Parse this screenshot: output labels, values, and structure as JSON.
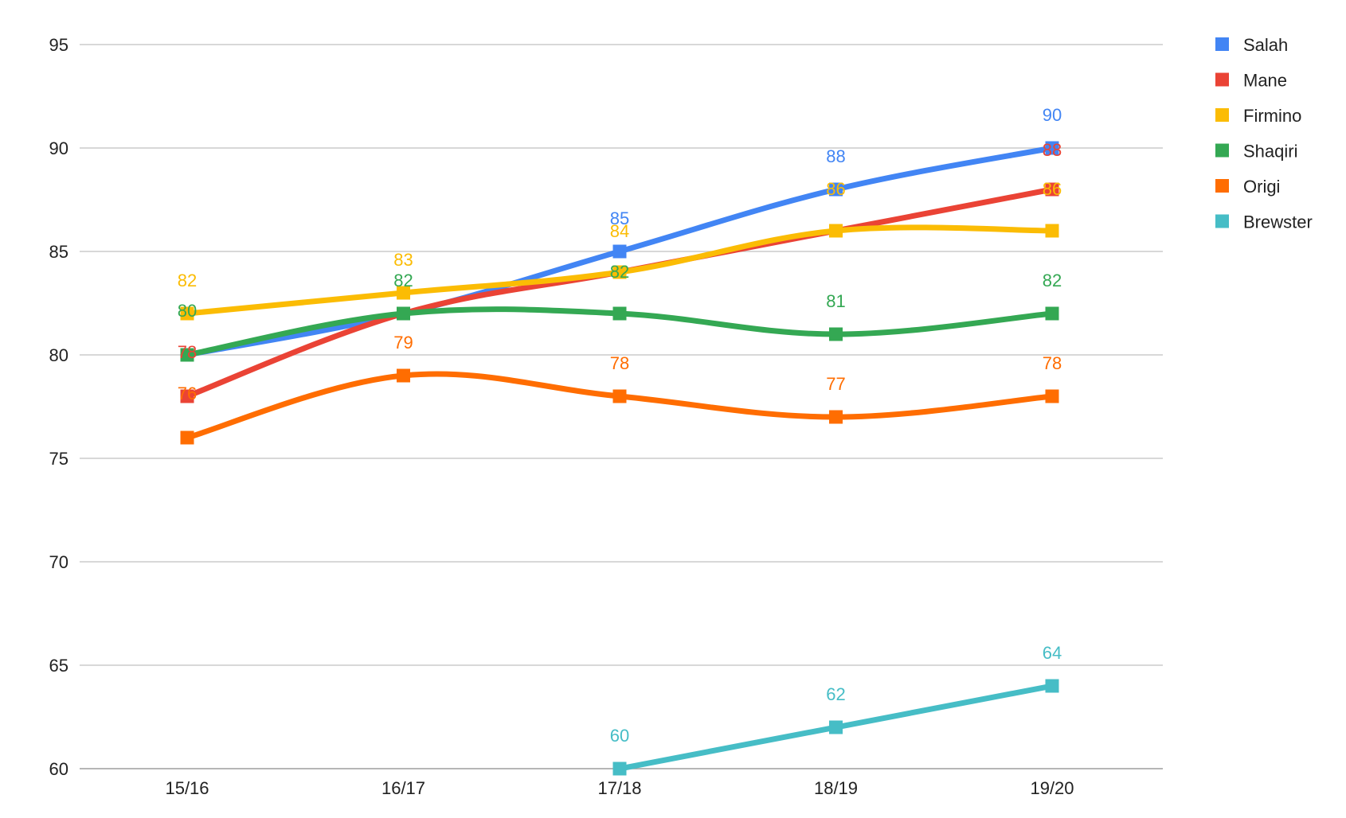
{
  "chart_data": {
    "type": "line",
    "title": "",
    "xlabel": "",
    "ylabel": "",
    "categories": [
      "15/16",
      "16/17",
      "17/18",
      "18/19",
      "19/20"
    ],
    "ylim": [
      60,
      95
    ],
    "yticks": [
      "60",
      "65",
      "70",
      "75",
      "80",
      "85",
      "90",
      "95"
    ],
    "grid": true,
    "legend_position": "right",
    "series": [
      {
        "name": "Salah",
        "color": "#4285f4",
        "values": [
          80,
          82,
          85,
          88,
          90
        ]
      },
      {
        "name": "Mane",
        "color": "#ea4335",
        "values": [
          78,
          82,
          84,
          86,
          88
        ]
      },
      {
        "name": "Firmino",
        "color": "#fbbc04",
        "values": [
          82,
          83,
          84,
          86,
          86
        ]
      },
      {
        "name": "Shaqiri",
        "color": "#34a853",
        "values": [
          80,
          82,
          82,
          81,
          82
        ]
      },
      {
        "name": "Origi",
        "color": "#ff6d01",
        "values": [
          76,
          79,
          78,
          77,
          78
        ]
      },
      {
        "name": "Brewster",
        "color": "#46bdc6",
        "values": [
          null,
          null,
          60,
          62,
          64
        ]
      }
    ],
    "data_labels": [
      {
        "series": 0,
        "index": 2,
        "text": "85"
      },
      {
        "series": 0,
        "index": 3,
        "text": "88"
      },
      {
        "series": 0,
        "index": 4,
        "text": "90"
      },
      {
        "series": 1,
        "index": 0,
        "text": "78"
      },
      {
        "series": 1,
        "index": 4,
        "text": "88"
      },
      {
        "series": 2,
        "index": 0,
        "text": "82"
      },
      {
        "series": 2,
        "index": 1,
        "text": "83"
      },
      {
        "series": 2,
        "index": 2,
        "text": "84"
      },
      {
        "series": 2,
        "index": 3,
        "text": "86"
      },
      {
        "series": 2,
        "index": 4,
        "text": "86"
      },
      {
        "series": 3,
        "index": 0,
        "text": "80"
      },
      {
        "series": 3,
        "index": 1,
        "text": "82"
      },
      {
        "series": 3,
        "index": 2,
        "text": "82"
      },
      {
        "series": 3,
        "index": 3,
        "text": "81"
      },
      {
        "series": 3,
        "index": 4,
        "text": "82"
      },
      {
        "series": 4,
        "index": 0,
        "text": "76"
      },
      {
        "series": 4,
        "index": 1,
        "text": "79"
      },
      {
        "series": 4,
        "index": 2,
        "text": "78"
      },
      {
        "series": 4,
        "index": 3,
        "text": "77"
      },
      {
        "series": 4,
        "index": 4,
        "text": "78"
      },
      {
        "series": 5,
        "index": 2,
        "text": "60"
      },
      {
        "series": 5,
        "index": 3,
        "text": "62"
      },
      {
        "series": 5,
        "index": 4,
        "text": "64"
      }
    ]
  }
}
